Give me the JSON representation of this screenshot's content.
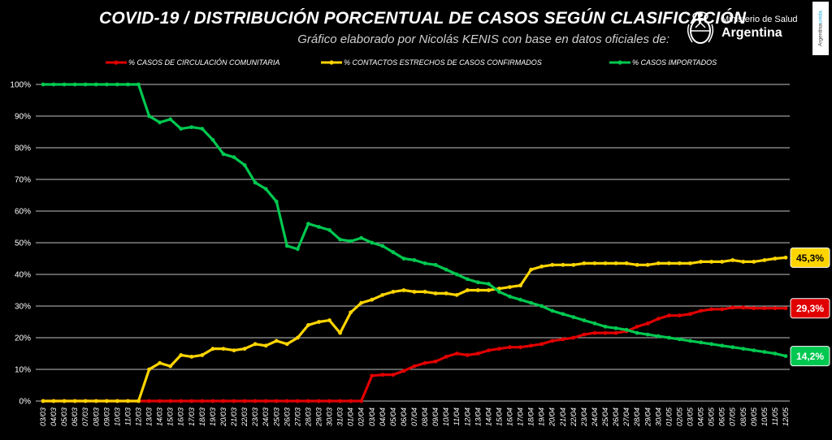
{
  "header": {
    "title": "COVID-19  /  DISTRIBUCIÓN PORCENTUAL DE CASOS SEGÚN CLASIFICACIÓN",
    "subtitle": "Gráfico elaborado por Nicolás KENIS con base en datos oficiales de:",
    "logo_line1": "Ministerio de Salud",
    "logo_line2": "Argentina",
    "badge_text": "Argentina",
    "badge_accent": "unida"
  },
  "colors": {
    "red": "#e00000",
    "yellow": "#ffd500",
    "green": "#00c850",
    "grid": "#ffffff"
  },
  "chart_data": {
    "type": "line",
    "ylim": [
      0,
      100
    ],
    "y_ticks": [
      "0%",
      "10%",
      "20%",
      "30%",
      "40%",
      "50%",
      "60%",
      "70%",
      "80%",
      "90%",
      "100%"
    ],
    "x": [
      "03/03",
      "04/03",
      "05/03",
      "06/03",
      "07/03",
      "08/03",
      "09/03",
      "10/03",
      "11/03",
      "12/03",
      "13/03",
      "14/03",
      "15/03",
      "16/03",
      "17/03",
      "18/03",
      "19/03",
      "20/03",
      "21/03",
      "22/03",
      "23/03",
      "24/03",
      "25/03",
      "26/03",
      "27/03",
      "28/03",
      "29/03",
      "30/03",
      "31/03",
      "01/04",
      "02/04",
      "03/04",
      "04/04",
      "05/04",
      "06/04",
      "07/04",
      "08/04",
      "09/04",
      "10/04",
      "11/04",
      "12/04",
      "13/04",
      "14/04",
      "15/04",
      "16/04",
      "17/04",
      "18/04",
      "19/04",
      "20/04",
      "21/04",
      "22/04",
      "23/04",
      "24/04",
      "25/04",
      "26/04",
      "27/04",
      "28/04",
      "29/04",
      "30/04",
      "01/05",
      "02/05",
      "03/05",
      "04/05",
      "05/05",
      "06/05",
      "07/05",
      "08/05",
      "09/05",
      "10/05",
      "11/05",
      "12/05"
    ],
    "x_labels": [
      "03/03",
      "04/03",
      "05/03",
      "06/03",
      "07/03",
      "08/03",
      "09/03",
      "10/03",
      "11/03",
      "12/03",
      "13/03",
      "14/03",
      "15/03",
      "16/03",
      "17/03",
      "18/03",
      "19/03",
      "20/03",
      "21/03",
      "22/03",
      "23/03",
      "24/03",
      "25/03",
      "26/03",
      "27/03",
      "28/03",
      "29/03",
      "30/03",
      "31/03",
      "01/04",
      "02/04",
      "03/04",
      "04/04",
      "05/04",
      "06/04",
      "07/04",
      "08/04",
      "09/04",
      "10/04",
      "11/04",
      "12/04",
      "13/04",
      "14/04",
      "15/04",
      "16/04",
      "17/04",
      "18/04",
      "19/04",
      "20/04",
      "21/04",
      "22/04",
      "23/04",
      "24/04",
      "25/04",
      "26/04",
      "27/04",
      "28/04",
      "29/04",
      "30/04",
      "01/05",
      "02/05",
      "03/05",
      "04/05",
      "05/05",
      "06/05",
      "07/05",
      "08/05",
      "09/05",
      "10/05",
      "11/05",
      "12/05"
    ],
    "legend_position": "top",
    "grid": true,
    "series": [
      {
        "name": "% CASOS DE CIRCULACIÓN COMUNITARIA",
        "color": "#e00000",
        "end_label": "29,3%",
        "values": [
          0,
          0,
          0,
          0,
          0,
          0,
          0,
          0,
          0,
          0,
          0,
          0,
          0,
          0,
          0,
          0,
          0,
          0,
          0,
          0,
          0,
          0,
          0,
          0,
          0,
          0,
          0,
          0,
          0,
          0,
          0,
          8,
          8.3,
          8.3,
          9.5,
          11,
          12,
          12.5,
          14,
          15,
          14.5,
          15,
          16,
          16.5,
          17,
          17,
          17.5,
          18,
          19,
          19.5,
          20,
          21,
          21.5,
          21.5,
          21.5,
          22,
          23.5,
          24.5,
          26,
          27,
          27,
          27.5,
          28.5,
          29,
          29,
          29.5,
          29.5,
          29.3,
          29.3,
          29.3,
          29.3
        ]
      },
      {
        "name": "% CONTACTOS ESTRECHOS DE CASOS CONFIRMADOS",
        "color": "#ffd500",
        "end_label": "45,3%",
        "values": [
          0,
          0,
          0,
          0,
          0,
          0,
          0,
          0,
          0,
          0,
          10,
          12,
          11,
          14.5,
          14,
          14.5,
          16.5,
          16.5,
          16,
          16.5,
          18,
          17.5,
          19,
          18,
          20,
          24,
          25,
          25.5,
          21.5,
          28,
          31,
          32,
          33.5,
          34.5,
          35,
          34.5,
          34.5,
          34,
          34,
          33.5,
          35,
          35,
          35,
          35.5,
          36,
          36.5,
          41.5,
          42.5,
          43,
          43,
          43,
          43.5,
          43.5,
          43.5,
          43.5,
          43.5,
          43,
          43,
          43.5,
          43.5,
          43.5,
          43.5,
          44,
          44,
          44,
          44.5,
          44,
          44,
          44.5,
          45,
          45.3
        ]
      },
      {
        "name": "% CASOS IMPORTADOS",
        "color": "#00c850",
        "end_label": "14,2%",
        "values": [
          100,
          100,
          100,
          100,
          100,
          100,
          100,
          100,
          100,
          100,
          90,
          88,
          89,
          86,
          86.5,
          86,
          82.5,
          78,
          77,
          74.5,
          69,
          67,
          63,
          49,
          48,
          56,
          55,
          54,
          51,
          50.5,
          51.5,
          50,
          49,
          47,
          45,
          44.5,
          43.5,
          43,
          41.5,
          40,
          38.5,
          37.5,
          37,
          34.5,
          33,
          32,
          31,
          30,
          28.5,
          27.5,
          26.5,
          25.5,
          24.5,
          23.5,
          23,
          22.5,
          21.5,
          21,
          20.5,
          20,
          19.5,
          19,
          18.5,
          18,
          17.5,
          17,
          16.5,
          16,
          15.5,
          15,
          14.2
        ]
      }
    ]
  }
}
